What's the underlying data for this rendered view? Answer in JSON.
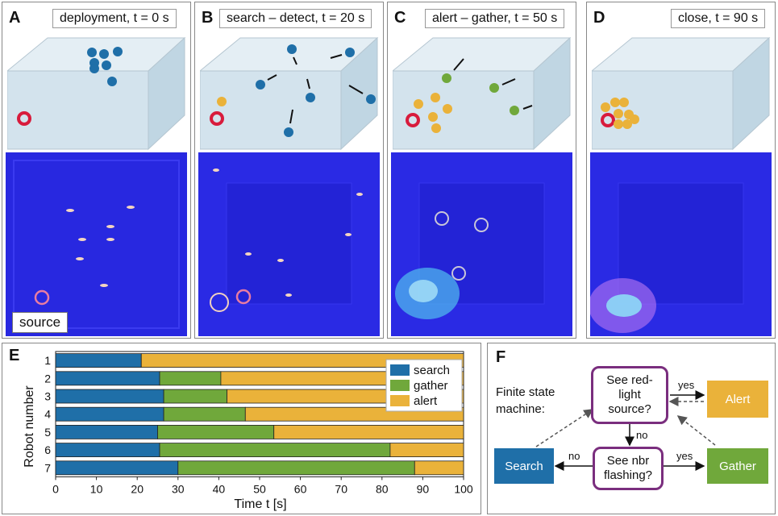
{
  "panels": [
    {
      "letter": "A",
      "caption": "deployment, t = 0 s"
    },
    {
      "letter": "B",
      "caption": "search – detect, t = 20 s"
    },
    {
      "letter": "C",
      "caption": "alert – gather, t = 50 s"
    },
    {
      "letter": "D",
      "caption": "close,  t = 90 s"
    }
  ],
  "source_label": "source",
  "colors": {
    "search": "#1f6fa8",
    "gather": "#70a83b",
    "alert": "#eab23a",
    "source_ring": "#d81b3c",
    "fsm_border": "#7a2e7e"
  },
  "chart_data": {
    "type": "bar",
    "orientation": "horizontal-stacked",
    "panel_letter": "E",
    "xlabel": "Time t [s]",
    "ylabel": "Robot number",
    "xlim": [
      0,
      100
    ],
    "xticks": [
      "0",
      "10",
      "20",
      "30",
      "40",
      "50",
      "60",
      "70",
      "80",
      "90",
      "100"
    ],
    "categories": [
      "1",
      "2",
      "3",
      "4",
      "5",
      "6",
      "7"
    ],
    "series": [
      {
        "name": "search",
        "values": [
          21,
          25.5,
          26.5,
          26.5,
          25,
          25.5,
          30
        ]
      },
      {
        "name": "gather",
        "values": [
          0,
          15,
          15.5,
          20,
          28.5,
          56.5,
          58
        ]
      },
      {
        "name": "alert",
        "values": [
          79,
          59.5,
          58,
          53.5,
          46.5,
          18,
          12
        ]
      }
    ],
    "legend": [
      "search",
      "gather",
      "alert"
    ]
  },
  "fsm": {
    "letter": "F",
    "title": "Finite state machine:",
    "q1": "See red-light source?",
    "q2": "See nbr flashing?",
    "alert": "Alert",
    "search": "Search",
    "gather": "Gather",
    "yes": "yes",
    "no": "no"
  }
}
